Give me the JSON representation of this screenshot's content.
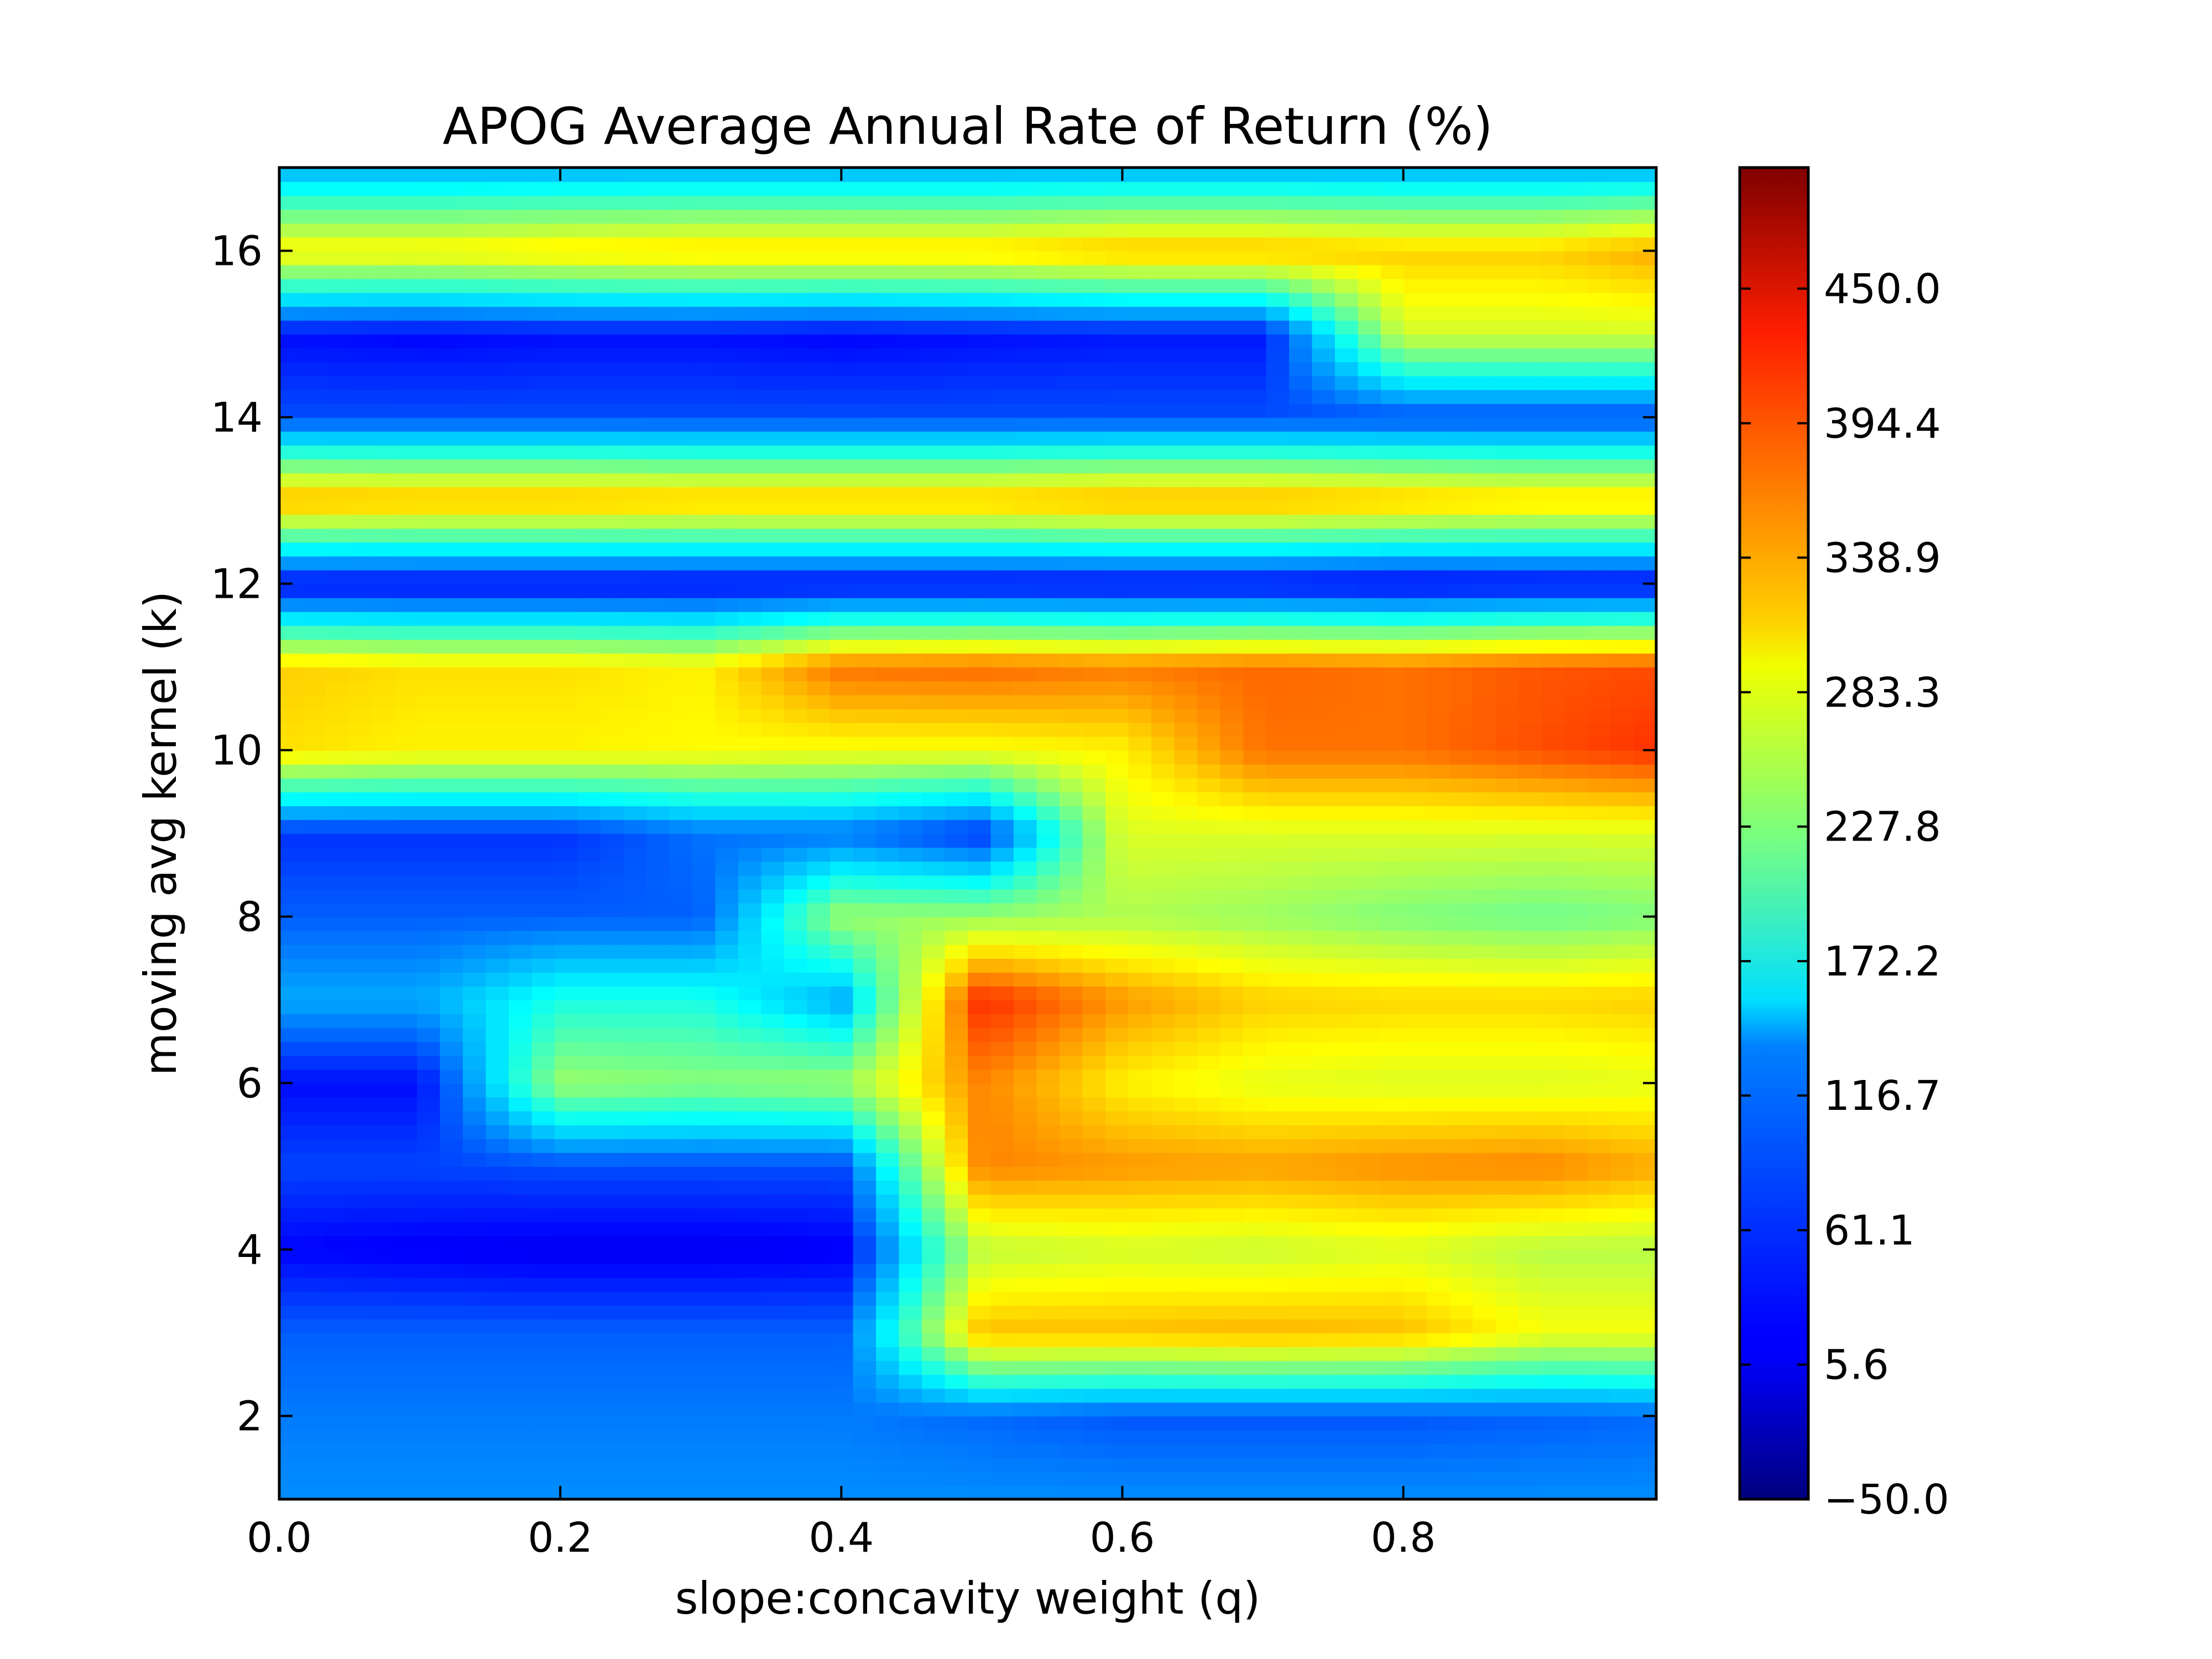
{
  "chart_data": {
    "type": "heatmap",
    "title": "APOG Average Annual Rate of Return (%)",
    "xlabel": "slope:concavity weight (q)",
    "ylabel": "moving avg kernel (k)",
    "xlim": [
      0.0,
      0.98
    ],
    "ylim": [
      1,
      17
    ],
    "x_ticks": [
      "0.0",
      "0.2",
      "0.4",
      "0.6",
      "0.8"
    ],
    "y_ticks": [
      "2",
      "4",
      "6",
      "8",
      "10",
      "12",
      "14",
      "16"
    ],
    "colorbar": {
      "range": [
        -50.0,
        500.0
      ],
      "ticks": [
        "−50.0",
        "5.6",
        "61.1",
        "116.7",
        "172.2",
        "227.8",
        "283.3",
        "338.9",
        "394.4",
        "450.0"
      ],
      "colormap": "jet"
    },
    "q": [
      0.0,
      0.1,
      0.2,
      0.3,
      0.4,
      0.5,
      0.6,
      0.7,
      0.8,
      0.9,
      0.98
    ],
    "k": [
      1,
      2,
      3,
      4,
      5,
      6,
      7,
      8,
      9,
      10,
      11,
      12,
      13,
      14,
      15,
      16,
      17
    ],
    "z": [
      [
        95,
        95,
        95,
        95,
        95,
        95,
        95,
        95,
        95,
        95,
        95
      ],
      [
        85,
        85,
        85,
        85,
        85,
        75,
        65,
        65,
        65,
        70,
        75
      ],
      [
        70,
        70,
        70,
        70,
        70,
        330,
        330,
        335,
        330,
        290,
        290
      ],
      [
        20,
        15,
        10,
        10,
        15,
        260,
        270,
        265,
        275,
        255,
        255
      ],
      [
        55,
        55,
        60,
        60,
        60,
        360,
        350,
        345,
        355,
        360,
        340
      ],
      [
        25,
        25,
        240,
        230,
        240,
        360,
        300,
        280,
        275,
        275,
        280
      ],
      [
        110,
        110,
        170,
        170,
        110,
        410,
        350,
        320,
        315,
        315,
        320
      ],
      [
        70,
        70,
        70,
        70,
        240,
        240,
        250,
        240,
        225,
        215,
        225
      ],
      [
        45,
        45,
        45,
        80,
        80,
        45,
        275,
        275,
        275,
        275,
        275
      ],
      [
        310,
        300,
        300,
        295,
        290,
        290,
        300,
        370,
        370,
        390,
        405
      ],
      [
        320,
        310,
        310,
        300,
        370,
        375,
        365,
        375,
        370,
        385,
        390
      ],
      [
        20,
        20,
        20,
        20,
        20,
        20,
        20,
        20,
        15,
        20,
        20
      ],
      [
        340,
        335,
        335,
        330,
        330,
        330,
        340,
        340,
        330,
        320,
        320
      ],
      [
        60,
        60,
        60,
        60,
        60,
        60,
        60,
        60,
        60,
        60,
        60
      ],
      [
        25,
        20,
        25,
        25,
        20,
        25,
        30,
        30,
        270,
        270,
        270
      ],
      [
        300,
        300,
        310,
        315,
        315,
        315,
        330,
        330,
        320,
        320,
        340
      ],
      [
        110,
        110,
        110,
        110,
        110,
        110,
        110,
        110,
        110,
        110,
        110
      ]
    ]
  }
}
